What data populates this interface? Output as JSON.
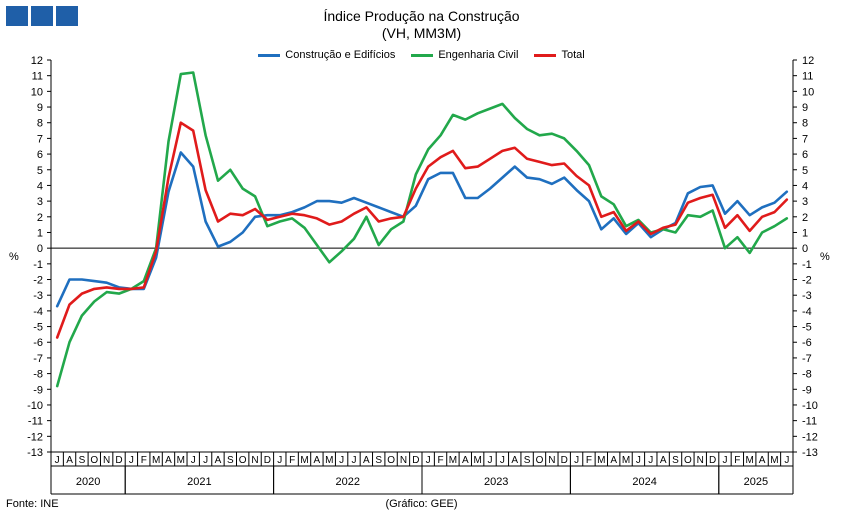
{
  "header": {
    "title_line1": "Índice Produção na Construção",
    "title_line2": "(VH, MM3M)",
    "source": "Fonte: INE",
    "credit": "(Gráfico: GEE)"
  },
  "chart_data": {
    "type": "line",
    "title": "Índice Produção na Construção",
    "subtitle": "(VH, MM3M)",
    "ylabel": "%",
    "ylim": [
      -13,
      12
    ],
    "yticks": [
      12,
      11,
      10,
      9,
      8,
      7,
      6,
      5,
      4,
      3,
      2,
      1,
      0,
      -1,
      -2,
      -3,
      -4,
      -5,
      -6,
      -7,
      -8,
      -9,
      -10,
      -11,
      -12,
      -13
    ],
    "grid": false,
    "legend_position": "top-center",
    "month_labels": [
      "J",
      "A",
      "S",
      "O",
      "N",
      "D",
      "J",
      "F",
      "M",
      "A",
      "M",
      "J",
      "J",
      "A",
      "S",
      "O",
      "N",
      "D",
      "J",
      "F",
      "M",
      "A",
      "M",
      "J",
      "J",
      "A",
      "S",
      "O",
      "N",
      "D",
      "J",
      "F",
      "M",
      "A",
      "M",
      "J",
      "J",
      "A",
      "S",
      "O",
      "N",
      "D",
      "J",
      "F",
      "M",
      "A",
      "M",
      "J",
      "J",
      "A",
      "S",
      "O",
      "N",
      "D",
      "J",
      "F",
      "M",
      "A",
      "M",
      "J"
    ],
    "years": [
      {
        "label": "2020",
        "start": 0,
        "end": 6
      },
      {
        "label": "2021",
        "start": 6,
        "end": 18
      },
      {
        "label": "2022",
        "start": 18,
        "end": 30
      },
      {
        "label": "2023",
        "start": 30,
        "end": 42
      },
      {
        "label": "2024",
        "start": 42,
        "end": 54
      },
      {
        "label": "2025",
        "start": 54,
        "end": 60
      }
    ],
    "series": [
      {
        "name": "Construção e Edifícios",
        "color": "#1f6fbf",
        "values": [
          -3.7,
          -2.0,
          -2.0,
          -2.1,
          -2.2,
          -2.5,
          -2.6,
          -2.6,
          -0.6,
          3.6,
          6.1,
          5.2,
          1.7,
          0.1,
          0.4,
          1.0,
          2.0,
          2.1,
          2.1,
          2.3,
          2.6,
          3.0,
          3.0,
          2.9,
          3.2,
          2.9,
          2.6,
          2.3,
          2.0,
          2.7,
          4.4,
          4.8,
          4.8,
          3.2,
          3.2,
          3.8,
          4.5,
          5.2,
          4.5,
          4.4,
          4.1,
          4.5,
          3.7,
          3.0,
          1.2,
          1.9,
          0.9,
          1.6,
          0.7,
          1.2,
          1.6,
          3.5,
          3.9,
          4.0,
          2.2,
          3.0,
          2.1,
          2.6,
          2.9,
          3.6
        ]
      },
      {
        "name": "Engenharia Civil",
        "color": "#22a84b",
        "values": [
          -8.8,
          -6.0,
          -4.3,
          -3.4,
          -2.8,
          -2.9,
          -2.6,
          -2.1,
          0.0,
          6.8,
          11.1,
          11.2,
          7.2,
          4.3,
          5.0,
          3.8,
          3.3,
          1.4,
          1.7,
          1.9,
          1.3,
          0.2,
          -0.9,
          -0.2,
          0.6,
          2.0,
          0.2,
          1.2,
          1.7,
          4.7,
          6.3,
          7.2,
          8.5,
          8.2,
          8.6,
          8.9,
          9.2,
          8.3,
          7.6,
          7.2,
          7.3,
          7.0,
          6.2,
          5.3,
          3.3,
          2.8,
          1.4,
          1.8,
          1.0,
          1.2,
          1.0,
          2.1,
          2.0,
          2.4,
          0.0,
          0.7,
          -0.3,
          1.0,
          1.4,
          1.9
        ]
      },
      {
        "name": "Total",
        "color": "#e01b1b",
        "values": [
          -5.7,
          -3.6,
          -2.9,
          -2.6,
          -2.5,
          -2.6,
          -2.6,
          -2.5,
          -0.2,
          4.5,
          8.0,
          7.5,
          3.7,
          1.7,
          2.2,
          2.1,
          2.5,
          1.8,
          2.0,
          2.2,
          2.1,
          1.9,
          1.5,
          1.7,
          2.2,
          2.6,
          1.7,
          1.9,
          2.0,
          3.8,
          5.2,
          5.8,
          6.2,
          5.1,
          5.2,
          5.7,
          6.2,
          6.4,
          5.7,
          5.5,
          5.3,
          5.4,
          4.6,
          4.0,
          2.0,
          2.3,
          1.1,
          1.7,
          0.9,
          1.3,
          1.5,
          2.9,
          3.2,
          3.4,
          1.3,
          2.1,
          1.1,
          2.0,
          2.3,
          3.1
        ]
      }
    ]
  }
}
